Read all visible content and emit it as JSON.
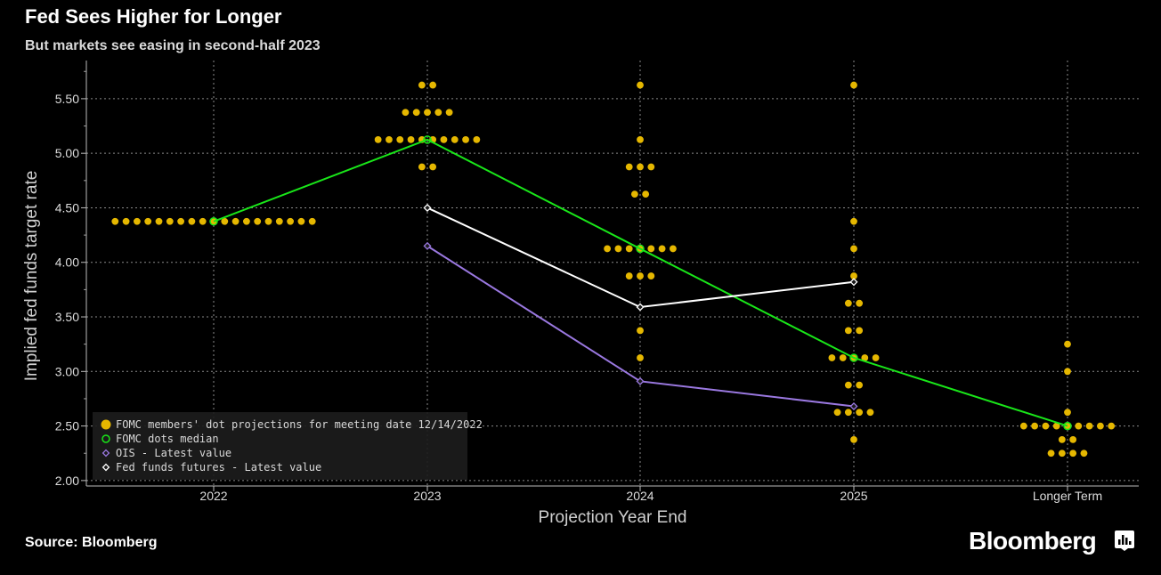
{
  "header": {
    "title": "Fed Sees Higher for Longer",
    "subtitle": "But markets see easing in second-half 2023"
  },
  "footer": {
    "source": "Source: Bloomberg",
    "brand": "Bloomberg"
  },
  "colors": {
    "background": "#000000",
    "dots": "#e5b700",
    "median": "#19e619",
    "ois": "#9a78e0",
    "futures": "#ffffff",
    "grid": "#8a8a8a"
  },
  "chart_data": {
    "type": "scatter",
    "xlabel": "Projection Year End",
    "ylabel": "Implied fed funds target rate",
    "categories": [
      "2022",
      "2023",
      "2024",
      "2025",
      "Longer Term"
    ],
    "ylim": [
      1.95,
      5.85
    ],
    "yticks": [
      "2.00",
      "2.50",
      "3.00",
      "3.50",
      "4.00",
      "4.50",
      "5.00",
      "5.50"
    ],
    "grid": true,
    "legend_position": "bottom-left",
    "dot_plot": {
      "name": "FOMC members' dot projections for meeting date 12/14/2022",
      "dots": [
        {
          "category": "2022",
          "value": 4.375,
          "count": 19
        },
        {
          "category": "2023",
          "value": 5.625,
          "count": 2
        },
        {
          "category": "2023",
          "value": 5.375,
          "count": 5
        },
        {
          "category": "2023",
          "value": 5.125,
          "count": 10
        },
        {
          "category": "2023",
          "value": 4.875,
          "count": 2
        },
        {
          "category": "2024",
          "value": 5.625,
          "count": 1
        },
        {
          "category": "2024",
          "value": 5.125,
          "count": 1
        },
        {
          "category": "2024",
          "value": 4.875,
          "count": 3
        },
        {
          "category": "2024",
          "value": 4.625,
          "count": 2
        },
        {
          "category": "2024",
          "value": 4.125,
          "count": 7
        },
        {
          "category": "2024",
          "value": 3.875,
          "count": 3
        },
        {
          "category": "2024",
          "value": 3.375,
          "count": 1
        },
        {
          "category": "2024",
          "value": 3.125,
          "count": 1
        },
        {
          "category": "2025",
          "value": 5.625,
          "count": 1
        },
        {
          "category": "2025",
          "value": 4.375,
          "count": 1
        },
        {
          "category": "2025",
          "value": 4.125,
          "count": 1
        },
        {
          "category": "2025",
          "value": 3.875,
          "count": 1
        },
        {
          "category": "2025",
          "value": 3.625,
          "count": 2
        },
        {
          "category": "2025",
          "value": 3.375,
          "count": 2
        },
        {
          "category": "2025",
          "value": 3.125,
          "count": 5
        },
        {
          "category": "2025",
          "value": 2.875,
          "count": 2
        },
        {
          "category": "2025",
          "value": 2.625,
          "count": 4
        },
        {
          "category": "2025",
          "value": 2.375,
          "count": 1
        },
        {
          "category": "Longer Term",
          "value": 3.25,
          "count": 1
        },
        {
          "category": "Longer Term",
          "value": 3.0,
          "count": 1
        },
        {
          "category": "Longer Term",
          "value": 2.625,
          "count": 1
        },
        {
          "category": "Longer Term",
          "value": 2.5,
          "count": 9
        },
        {
          "category": "Longer Term",
          "value": 2.375,
          "count": 2
        },
        {
          "category": "Longer Term",
          "value": 2.25,
          "count": 4
        }
      ]
    },
    "series": [
      {
        "name": "FOMC dots median",
        "x": [
          "2022",
          "2023",
          "2024",
          "2025",
          "Longer Term"
        ],
        "values": [
          4.375,
          5.125,
          4.125,
          3.125,
          2.5
        ]
      },
      {
        "name": "OIS - Latest value",
        "x": [
          "2023",
          "2024",
          "2025"
        ],
        "values": [
          4.15,
          2.91,
          2.68
        ]
      },
      {
        "name": "Fed funds futures - Latest value",
        "x": [
          "2023",
          "2024",
          "2025"
        ],
        "values": [
          4.5,
          3.59,
          3.82
        ]
      }
    ],
    "legend": [
      "FOMC members' dot projections for meeting date 12/14/2022",
      "FOMC dots median",
      "OIS - Latest value",
      "Fed funds futures - Latest value"
    ]
  }
}
